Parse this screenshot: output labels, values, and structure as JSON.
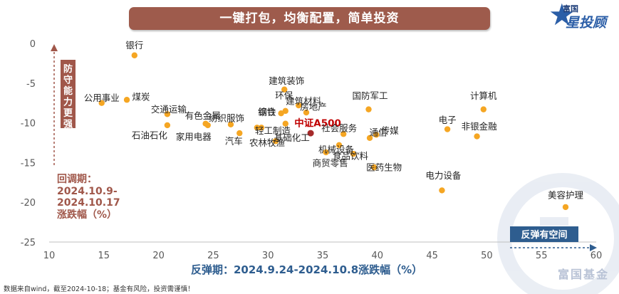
{
  "banner": {
    "title": "一键打包，均衡配置，简单投资"
  },
  "logo": {
    "top_text": "富国",
    "main_text": "星投顾"
  },
  "left_annotation": {
    "text": "回调期：\n2024.10.9-\n2024.10.17\n涨跌幅（%）"
  },
  "x_axis_title": "反弹期：2024.9.24-2024.10.8涨跌幅（%）",
  "footnote": "数据来自wind，截至2024-10-18；基金有风险，投资需谨慎！",
  "watermark": "富国基金",
  "colors": {
    "point": "#f5a623",
    "highlight_point": "#a52a2a",
    "highlight_label": "#c00000",
    "banner": "#9e5b4c",
    "arrow_up_box": "#a0574a",
    "arrow_right_box": "#2e5d8f"
  },
  "chart_data": {
    "type": "scatter",
    "xlim": [
      10,
      60
    ],
    "ylim": [
      -25,
      0
    ],
    "x_ticks": [
      "10",
      "15",
      "20",
      "25",
      "30",
      "35",
      "40",
      "45",
      "50",
      "55",
      "60"
    ],
    "y_ticks": [
      "0",
      "-5",
      "-10",
      "-15",
      "-20",
      "-25"
    ],
    "grid": false,
    "up_arrow_label": "防守能力更强",
    "right_arrow_label": "反弹有空间",
    "points": [
      {
        "name": "银行",
        "x": 17.8,
        "y": -1.5
      },
      {
        "name": "公用事业",
        "x": 14.8,
        "y": -7.5
      },
      {
        "name": "煤炭",
        "x": 17.1,
        "y": -7.1
      },
      {
        "name": "交通运输",
        "x": 20.8,
        "y": -8.9
      },
      {
        "name": "石油石化",
        "x": 20.8,
        "y": -10.3
      },
      {
        "name": "有色金属",
        "x": 24.3,
        "y": -10.1
      },
      {
        "name": "家用电器",
        "x": 24.5,
        "y": -10.3
      },
      {
        "name": "纺织服饰",
        "x": 26.6,
        "y": -10.2
      },
      {
        "name": "汽车",
        "x": 27.4,
        "y": -11.3
      },
      {
        "name": "钢铁",
        "x": 29.0,
        "y": -10.6
      },
      {
        "name": "轻工制造",
        "x": 29.4,
        "y": -10.6
      },
      {
        "name": "农林牧渔",
        "x": 30.7,
        "y": -12.3
      },
      {
        "name": "综合",
        "x": 31.2,
        "y": -8.8
      },
      {
        "name": "建筑装饰",
        "x": 31.5,
        "y": -5.8
      },
      {
        "name": "环保",
        "x": 31.6,
        "y": -8.5
      },
      {
        "name": "基础化工",
        "x": 31.6,
        "y": -10.1
      },
      {
        "name": "建筑材料",
        "x": 32.8,
        "y": -7.8
      },
      {
        "name": "房地产",
        "x": 33.5,
        "y": -8.7
      },
      {
        "name": "中证A500",
        "x": 33.9,
        "y": -11.3,
        "highlight": true
      },
      {
        "name": "商贸零售",
        "x": 35.3,
        "y": -13.7
      },
      {
        "name": "机械设备",
        "x": 36.5,
        "y": -12.8
      },
      {
        "name": "社会服务",
        "x": 36.9,
        "y": -11.4
      },
      {
        "name": "食品饮料",
        "x": 37.8,
        "y": -13.9
      },
      {
        "name": "国防军工",
        "x": 39.2,
        "y": -8.3
      },
      {
        "name": "通信",
        "x": 39.3,
        "y": -11.9
      },
      {
        "name": "医药生物",
        "x": 39.7,
        "y": -15.6
      },
      {
        "name": "传媒",
        "x": 39.9,
        "y": -11.5
      },
      {
        "name": "电力设备",
        "x": 45.9,
        "y": -18.5
      },
      {
        "name": "电子",
        "x": 46.4,
        "y": -10.8
      },
      {
        "name": "非银金融",
        "x": 49.1,
        "y": -11.7
      },
      {
        "name": "计算机",
        "x": 49.7,
        "y": -8.3
      },
      {
        "name": "美容护理",
        "x": 57.2,
        "y": -20.6
      }
    ]
  }
}
